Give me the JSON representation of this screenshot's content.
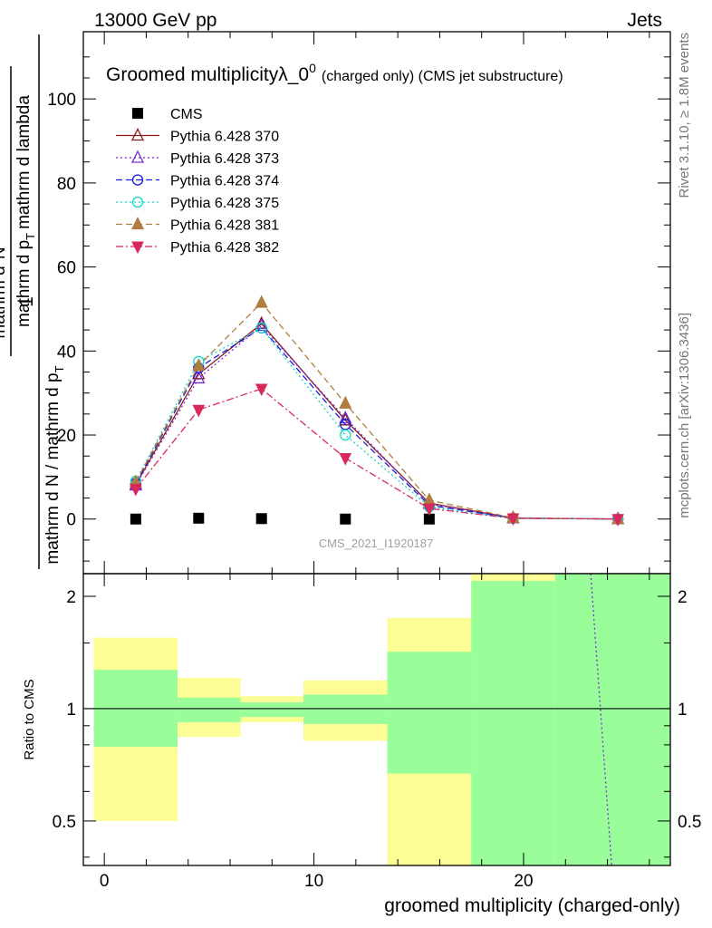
{
  "header": {
    "energy": "13000 GeV pp",
    "category": "Jets"
  },
  "side_labels": {
    "rivet": "Rivet 3.1.10, ≥ 1.8M events",
    "mcplots": "mcplots.cern.ch [arXiv:1306.3436]"
  },
  "chart_data": [
    {
      "type": "line",
      "title": "Groomed multiplicityλ_0",
      "title_sup": "0",
      "title_suffix": "(charged only) (CMS jet substructure)",
      "ylabel": {
        "prefix": "1",
        "denominator": "mathrm d N / mathrm d p",
        "denominator_sub": "T",
        "frac_numerator": "mathrm d",
        "frac_numerator_sup": "2",
        "frac_numerator_tail": "N",
        "frac_denominator": "mathrm d p",
        "frac_denominator_sub": "T",
        "frac_denominator_tail": "mathrm d lambda"
      },
      "watermark": "CMS_2021_I1920187",
      "xlim": [
        -1,
        27
      ],
      "ylim": [
        -13,
        116
      ],
      "yticks": [
        0,
        20,
        40,
        60,
        80,
        100
      ],
      "ytick_labels": [
        "0",
        "20",
        "40",
        "60",
        "80",
        "100"
      ],
      "legend_position": "top-left",
      "x": [
        1.5,
        4.5,
        7.5,
        11.5,
        15.5,
        19.5,
        24.5
      ],
      "series": [
        {
          "name": "CMS",
          "color": "#000000",
          "marker": "square",
          "dash": "none",
          "x": [
            1.5,
            4.5,
            7.5,
            11.5,
            15.5
          ],
          "values": [
            0.0,
            0.2,
            0.1,
            0.0,
            0.0
          ]
        },
        {
          "name": "Pythia 6.428 370",
          "color": "#8b1a1a",
          "marker": "triangle-open",
          "dash": "solid",
          "values": [
            8.2,
            34.5,
            46.5,
            23.5,
            3.8,
            0.25,
            0.0
          ]
        },
        {
          "name": "Pythia 6.428 373",
          "color": "#7b2bd6",
          "marker": "triangle-open",
          "dash": "dot",
          "values": [
            8.0,
            33.5,
            46.0,
            24.0,
            3.6,
            0.2,
            0.0
          ]
        },
        {
          "name": "Pythia 6.428 374",
          "color": "#1a1adb",
          "marker": "circle-open",
          "dash": "dash",
          "values": [
            8.5,
            36.0,
            45.5,
            22.5,
            3.3,
            0.2,
            0.0
          ]
        },
        {
          "name": "Pythia 6.428 375",
          "color": "#10d6c6",
          "marker": "circle-open",
          "dash": "dot",
          "values": [
            9.0,
            37.5,
            45.5,
            20.0,
            2.9,
            0.15,
            0.0
          ]
        },
        {
          "name": "Pythia 6.428 381",
          "color": "#b07d3e",
          "marker": "triangle-filled",
          "dash": "dash",
          "values": [
            8.8,
            36.5,
            51.5,
            27.5,
            4.5,
            0.3,
            0.0
          ]
        },
        {
          "name": "Pythia 6.428 382",
          "color": "#d8285c",
          "marker": "triangle-down-filled",
          "dash": "dashdot",
          "values": [
            7.2,
            26.0,
            31.0,
            14.5,
            2.5,
            0.15,
            0.0
          ]
        }
      ]
    },
    {
      "type": "area",
      "ylabel": "Ratio to CMS",
      "xlabel": "groomed multiplicity (charged-only)",
      "log_y": true,
      "ylim": [
        0.38,
        2.3
      ],
      "yticks": [
        0.5,
        1,
        2
      ],
      "ytick_labels": [
        "0.5",
        "1",
        "2"
      ],
      "xticks": [
        0,
        10,
        20
      ],
      "xtick_labels": [
        "0",
        "10",
        "20"
      ],
      "reference_line": 1,
      "bands": [
        {
          "x0": -0.5,
          "x1": 3.5,
          "green": [
            0.79,
            1.27
          ],
          "yellow": [
            0.5,
            1.55
          ]
        },
        {
          "x0": 3.5,
          "x1": 6.5,
          "green": [
            0.92,
            1.07
          ],
          "yellow": [
            0.84,
            1.21
          ]
        },
        {
          "x0": 6.5,
          "x1": 9.5,
          "green": [
            0.95,
            1.04
          ],
          "yellow": [
            0.92,
            1.08
          ]
        },
        {
          "x0": 9.5,
          "x1": 13.5,
          "green": [
            0.91,
            1.09
          ],
          "yellow": [
            0.82,
            1.19
          ]
        },
        {
          "x0": 13.5,
          "x1": 17.5,
          "green": [
            0.67,
            1.42
          ],
          "yellow": [
            0.38,
            1.75
          ]
        },
        {
          "x0": 17.5,
          "x1": 21.5,
          "green": [
            0.38,
            2.2
          ],
          "yellow": [
            0.38,
            2.3
          ]
        },
        {
          "x0": 21.5,
          "x1": 27.0,
          "green": [
            0.38,
            2.3
          ],
          "yellow": [
            0.38,
            2.3
          ]
        }
      ],
      "ratio_curve": {
        "name": "Pythia 6.428 373",
        "color": "#7b2bd6",
        "points": [
          [
            23.2,
            2.3
          ],
          [
            24.2,
            0.38
          ]
        ]
      }
    }
  ]
}
